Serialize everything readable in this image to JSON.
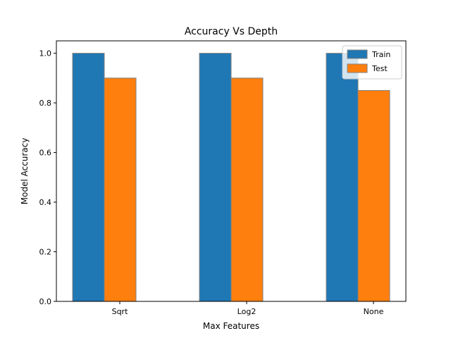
{
  "chart_data": {
    "type": "bar",
    "title": "Accuracy Vs Depth",
    "xlabel": "Max Features",
    "ylabel": "Model Accuracy",
    "categories": [
      "Sqrt",
      "Log2",
      "None"
    ],
    "series": [
      {
        "name": "Train",
        "values": [
          1.0,
          1.0,
          1.0
        ],
        "color": "#1f77b4"
      },
      {
        "name": "Test",
        "values": [
          0.9,
          0.9,
          0.85
        ],
        "color": "#ff7f0e"
      }
    ],
    "ylim": [
      0,
      1.05
    ],
    "yticks": [
      0.0,
      0.2,
      0.4,
      0.6,
      0.8,
      1.0
    ],
    "ytick_labels": [
      "0.0",
      "0.2",
      "0.4",
      "0.6",
      "0.8",
      "1.0"
    ],
    "legend_position": "top-right",
    "grid": false
  }
}
